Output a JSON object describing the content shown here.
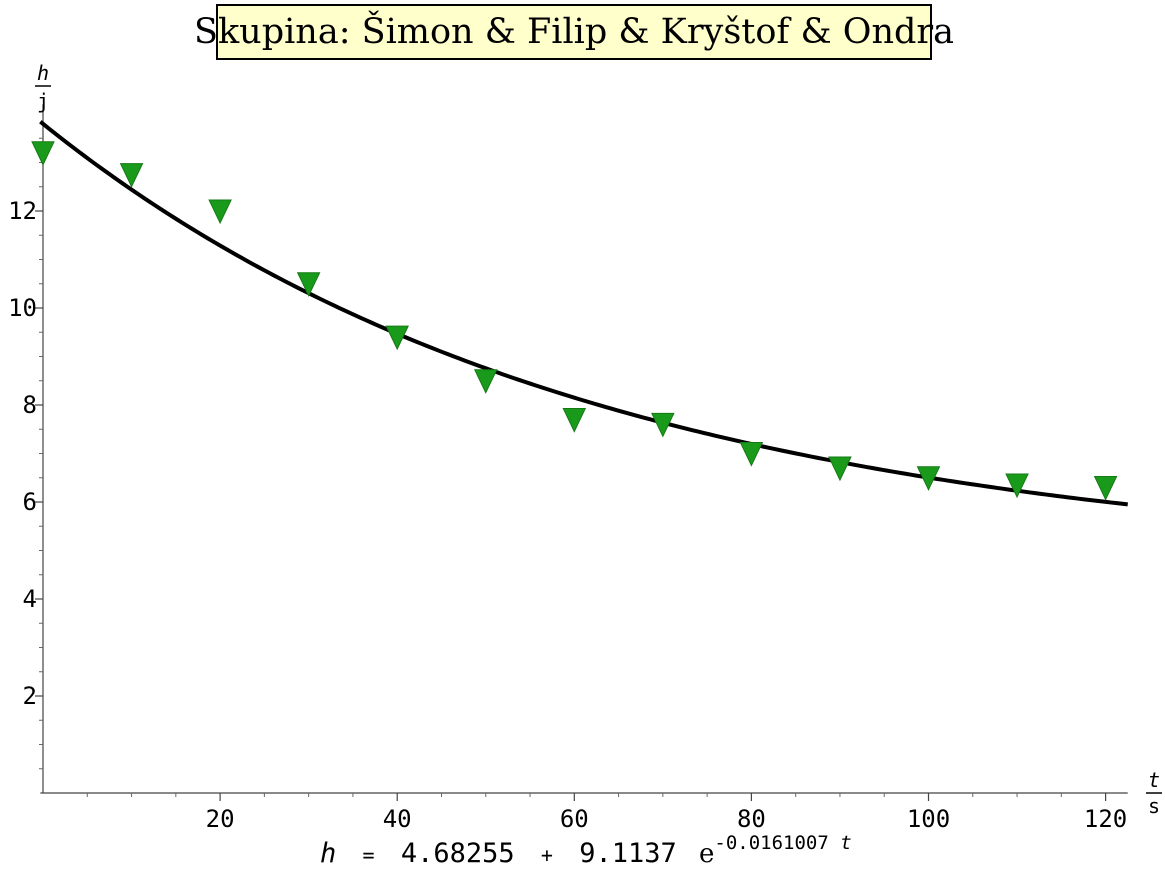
{
  "chart_data": {
    "type": "scatter",
    "title": "Skupina: Šimon & Filip & Kryštof & Ondra",
    "xlabel": {
      "var": "t",
      "unit": "s"
    },
    "ylabel": {
      "var": "h",
      "unit": "j"
    },
    "xlim": [
      -0.3,
      122.5
    ],
    "ylim": [
      0,
      14.2
    ],
    "x_ticks": [
      20,
      40,
      60,
      80,
      100,
      120
    ],
    "y_ticks": [
      2,
      4,
      6,
      8,
      10,
      12
    ],
    "grid": false,
    "series": [
      {
        "marker": "triangle-down",
        "color": "#1a9a1a",
        "x": [
          0,
          10,
          20,
          30,
          40,
          50,
          60,
          70,
          80,
          90,
          100,
          110,
          120
        ],
        "y": [
          13.2,
          12.75,
          12.0,
          10.5,
          9.4,
          8.5,
          7.7,
          7.6,
          7.0,
          6.7,
          6.5,
          6.35,
          6.3
        ]
      }
    ],
    "fit": {
      "a": 4.68255,
      "b": 9.1137,
      "k": -0.0161007,
      "x_range": [
        -0.3,
        122.5
      ],
      "color": "#000000"
    },
    "formula": {
      "lhs": "h",
      "eq": "=",
      "a": "4.68255",
      "plus": "+",
      "b": "9.1137",
      "e": "e",
      "exp": "-0.0161007",
      "var": "t"
    }
  }
}
